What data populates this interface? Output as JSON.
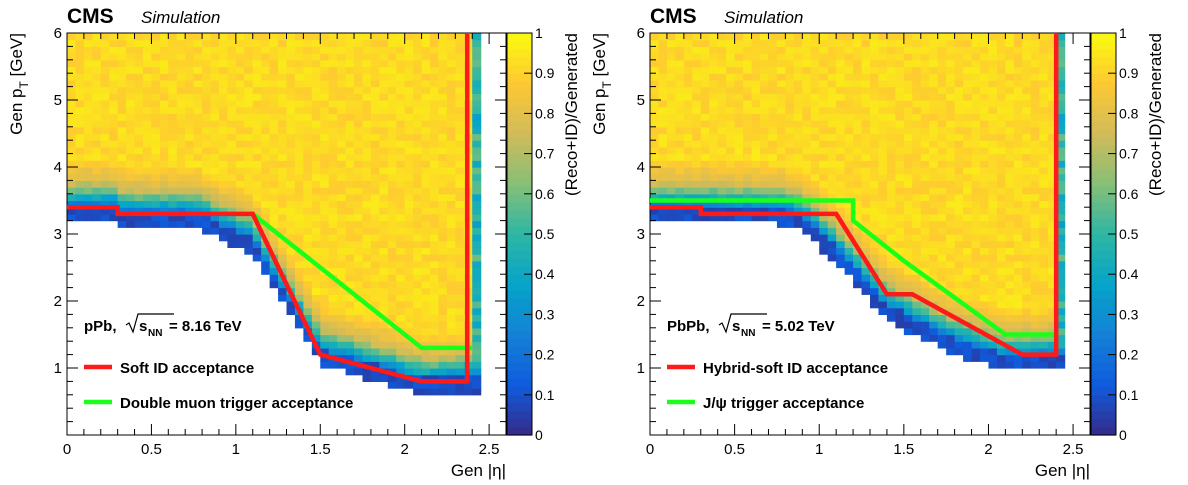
{
  "colors": {
    "soft_id_line": "#ff1a1a",
    "trigger_line": "#1aff1a",
    "colormap": [
      "#352a87",
      "#0f5cdd",
      "#1481d6",
      "#06a4ca",
      "#2eb7a4",
      "#87bf77",
      "#d1bb59",
      "#fec832",
      "#f9fb0e"
    ]
  },
  "chart_data": [
    {
      "type": "heatmap",
      "cms_label": "CMS",
      "cms_sublabel": "Simulation",
      "xlabel": "Gen |η|",
      "ylabel": "Gen p",
      "ylabel_sub": "T",
      "ylabel_unit": " [GeV]",
      "zlabel": "(Reco+ID)/Generated",
      "xlim": [
        0,
        2.6
      ],
      "ylim": [
        0,
        6
      ],
      "zlim": [
        0,
        1
      ],
      "x_ticks": [
        "0",
        "0.5",
        "1",
        "1.5",
        "2",
        "2.5"
      ],
      "y_ticks": [
        "1",
        "2",
        "3",
        "4",
        "5",
        "6"
      ],
      "z_ticks": [
        "0",
        "0.1",
        "0.2",
        "0.3",
        "0.4",
        "0.5",
        "0.6",
        "0.7",
        "0.8",
        "0.9",
        "1"
      ],
      "system_label": "pPb,",
      "energy_sym": "s",
      "energy_sub": "NN",
      "energy_value": "= 8.16 TeV",
      "legend": [
        "Soft ID acceptance",
        "Double muon trigger acceptance"
      ],
      "soft_id_line": [
        [
          0,
          3.4
        ],
        [
          0.3,
          3.4
        ],
        [
          0.3,
          3.3
        ],
        [
          1.1,
          3.3
        ],
        [
          1.5,
          1.2
        ],
        [
          2.1,
          0.8
        ],
        [
          2.37,
          0.8
        ],
        [
          2.37,
          6
        ]
      ],
      "trigger_line": [
        [
          1.1,
          3.3
        ],
        [
          2.1,
          1.3
        ],
        [
          2.4,
          1.3
        ]
      ],
      "efficiency_edge": [
        [
          0,
          3.2
        ],
        [
          0.3,
          3.2
        ],
        [
          0.3,
          3.1
        ],
        [
          0.75,
          3.1
        ],
        [
          1.1,
          2.7
        ],
        [
          1.5,
          1.05
        ],
        [
          2.1,
          0.6
        ],
        [
          2.45,
          0.65
        ],
        [
          2.45,
          6
        ]
      ],
      "eta_max": 2.5
    },
    {
      "type": "heatmap",
      "cms_label": "CMS",
      "cms_sublabel": "Simulation",
      "xlabel": "Gen |η|",
      "ylabel": "Gen p",
      "ylabel_sub": "T",
      "ylabel_unit": " [GeV]",
      "zlabel": "(Reco+ID)/Generated",
      "xlim": [
        0,
        2.6
      ],
      "ylim": [
        0,
        6
      ],
      "zlim": [
        0,
        1
      ],
      "x_ticks": [
        "0",
        "0.5",
        "1",
        "1.5",
        "2",
        "2.5"
      ],
      "y_ticks": [
        "1",
        "2",
        "3",
        "4",
        "5",
        "6"
      ],
      "z_ticks": [
        "0",
        "0.1",
        "0.2",
        "0.3",
        "0.4",
        "0.5",
        "0.6",
        "0.7",
        "0.8",
        "0.9",
        "1"
      ],
      "system_label": "PbPb,",
      "energy_sym": "s",
      "energy_sub": "NN",
      "energy_value": "= 5.02 TeV",
      "legend": [
        "Hybrid-soft ID acceptance",
        "J/ψ trigger acceptance"
      ],
      "soft_id_line": [
        [
          0,
          3.4
        ],
        [
          0.3,
          3.4
        ],
        [
          0.3,
          3.3
        ],
        [
          1.1,
          3.3
        ],
        [
          1.4,
          2.1
        ],
        [
          1.55,
          2.1
        ],
        [
          2.2,
          1.2
        ],
        [
          2.4,
          1.2
        ],
        [
          2.4,
          6
        ]
      ],
      "trigger_line": [
        [
          0,
          3.5
        ],
        [
          1.2,
          3.5
        ],
        [
          1.2,
          3.2
        ],
        [
          1.5,
          2.6
        ],
        [
          2.1,
          1.5
        ],
        [
          2.4,
          1.5
        ]
      ],
      "efficiency_edge": [
        [
          0,
          3.2
        ],
        [
          0.75,
          3.15
        ],
        [
          0.9,
          3.05
        ],
        [
          1.2,
          2.3
        ],
        [
          1.4,
          1.7
        ],
        [
          1.8,
          1.2
        ],
        [
          2.1,
          0.95
        ],
        [
          2.45,
          1.0
        ],
        [
          2.45,
          6
        ]
      ],
      "eta_max": 2.5
    }
  ]
}
